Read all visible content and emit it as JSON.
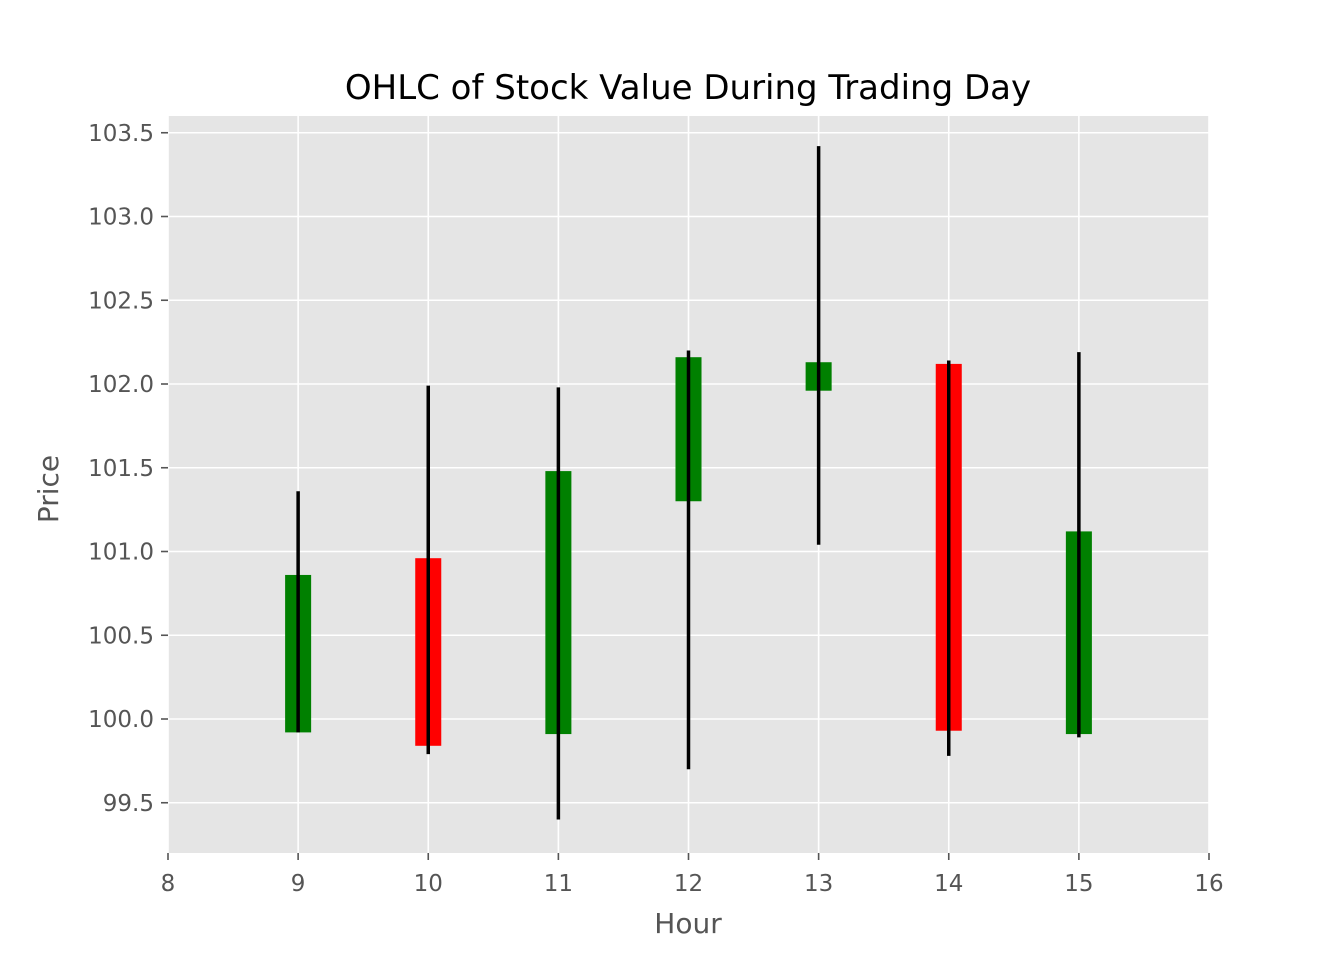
{
  "chart_data": {
    "type": "candlestick",
    "title": "OHLC of Stock Value During Trading Day",
    "xlabel": "Hour",
    "ylabel": "Price",
    "xlim": [
      8,
      16
    ],
    "ylim": [
      99.2,
      103.6
    ],
    "xticks": [
      "8",
      "9",
      "10",
      "11",
      "12",
      "13",
      "14",
      "15",
      "16"
    ],
    "xtick_values": [
      8,
      9,
      10,
      11,
      12,
      13,
      14,
      15,
      16
    ],
    "yticks": [
      "99.5",
      "100.0",
      "100.5",
      "101.0",
      "101.5",
      "102.0",
      "102.5",
      "103.0",
      "103.5"
    ],
    "ytick_values": [
      99.5,
      100.0,
      100.5,
      101.0,
      101.5,
      102.0,
      102.5,
      103.0,
      103.5
    ],
    "grid": true,
    "style": "ggplot",
    "colors": {
      "up": "#008000",
      "down": "#ff0000",
      "wick": "#000000",
      "axes_background": "#e5e5e5",
      "grid": "#ffffff"
    },
    "candles": [
      {
        "x": 9,
        "open": 99.92,
        "high": 101.36,
        "low": 99.92,
        "close": 100.86
      },
      {
        "x": 10,
        "open": 100.96,
        "high": 101.99,
        "low": 99.79,
        "close": 99.84
      },
      {
        "x": 11,
        "open": 99.91,
        "high": 101.98,
        "low": 99.4,
        "close": 101.48
      },
      {
        "x": 12,
        "open": 101.3,
        "high": 102.2,
        "low": 99.7,
        "close": 102.16
      },
      {
        "x": 13,
        "open": 101.96,
        "high": 103.42,
        "low": 101.04,
        "close": 102.13
      },
      {
        "x": 14,
        "open": 102.12,
        "high": 102.14,
        "low": 99.78,
        "close": 99.93
      },
      {
        "x": 15,
        "open": 99.91,
        "high": 102.19,
        "low": 99.89,
        "close": 101.12
      }
    ]
  }
}
